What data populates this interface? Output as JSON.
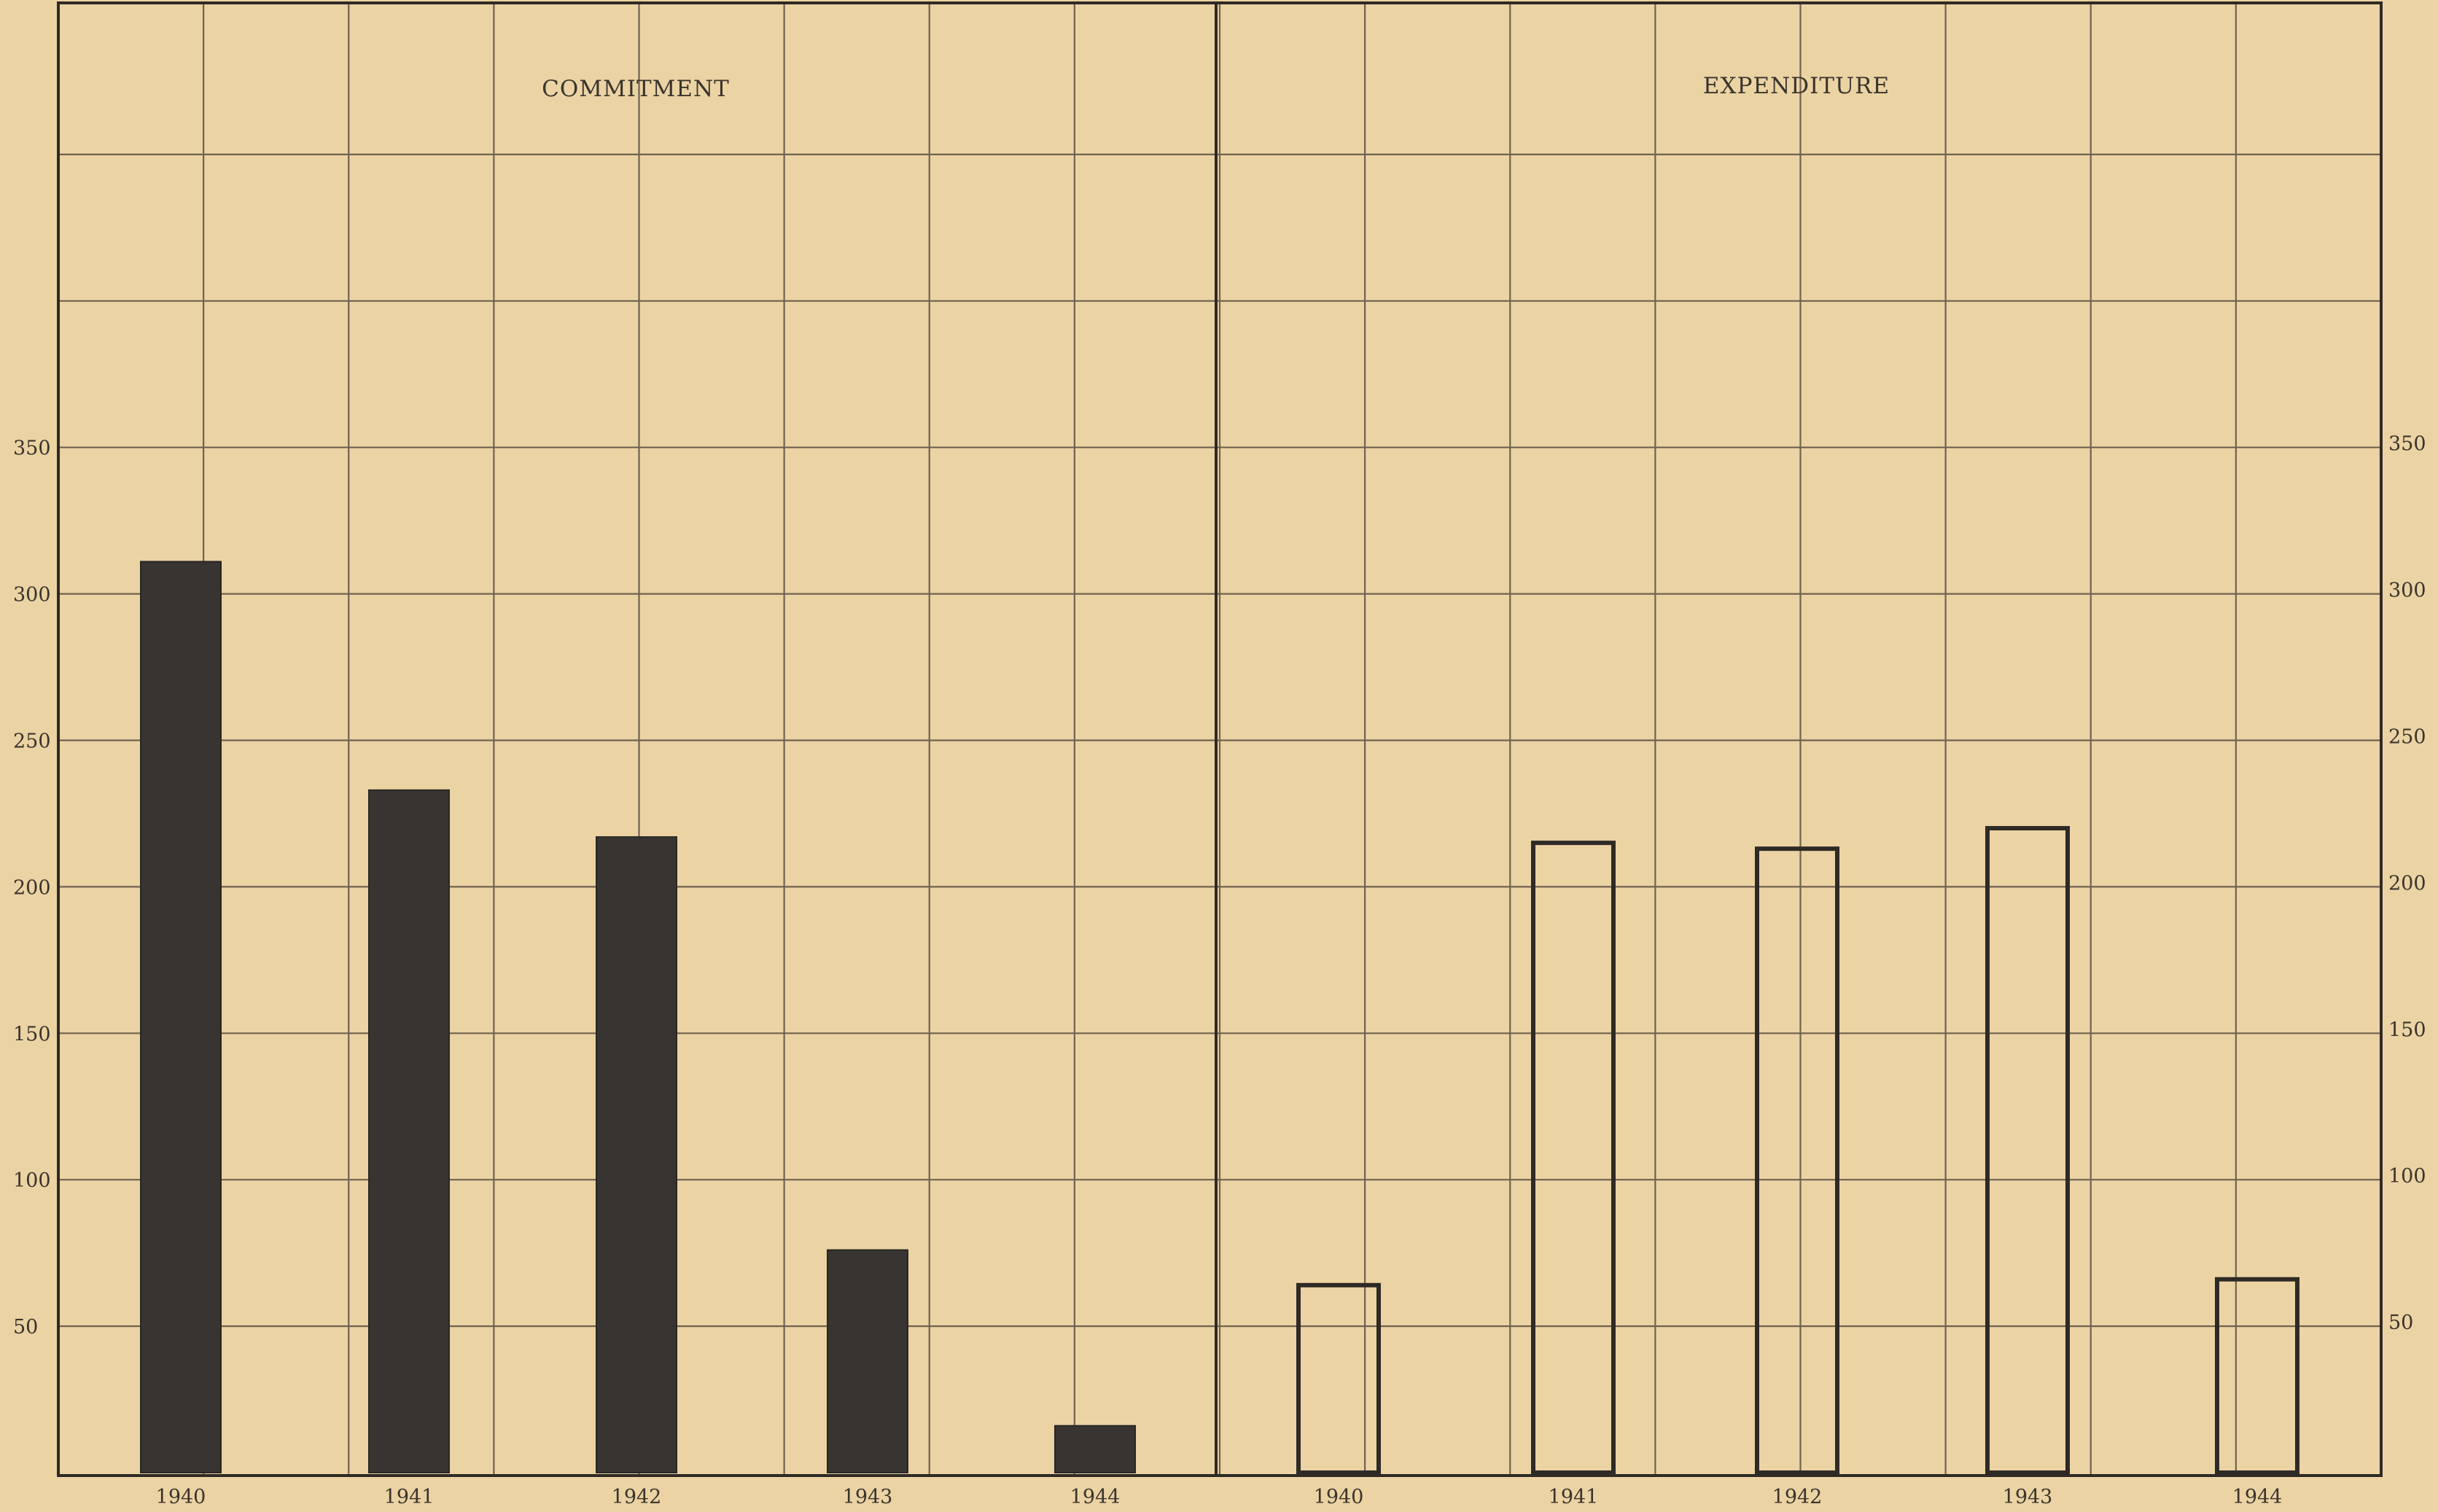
{
  "chart_data": [
    {
      "type": "bar",
      "title": "COMMITMENT",
      "categories": [
        "1940",
        "1941",
        "1942",
        "1943",
        "1944"
      ],
      "values": [
        311,
        233,
        217,
        76,
        16
      ],
      "ylim": [
        0,
        500
      ],
      "yticks": [
        "50",
        "100",
        "150",
        "200",
        "250",
        "300",
        "350"
      ],
      "ytick_values": [
        50,
        100,
        150,
        200,
        250,
        300,
        350
      ],
      "style": "filled",
      "color": "#373431",
      "grid": true
    },
    {
      "type": "bar",
      "title": "EXPENDITURE",
      "categories": [
        "1940",
        "1941",
        "1942",
        "1943",
        "1944"
      ],
      "values": [
        64,
        215,
        213,
        220,
        66
      ],
      "ylim": [
        0,
        500
      ],
      "yticks": [
        "50",
        "100",
        "150",
        "200",
        "250",
        "300",
        "350"
      ],
      "ytick_values": [
        50,
        100,
        150,
        200,
        250,
        300,
        350
      ],
      "style": "outline",
      "color": "#2e2a25",
      "grid": true
    }
  ]
}
